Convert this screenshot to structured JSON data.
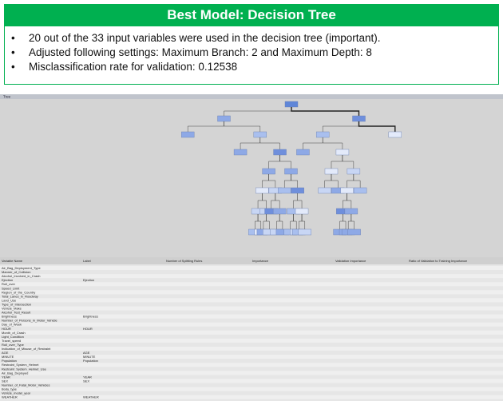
{
  "header": {
    "title": "Best Model: Decision Tree"
  },
  "bullets": [
    "20 out of the 33 input variables were used in the decision tree (important).",
    "Adjusted following settings: Maximum Branch: 2 and Maximum Depth: 8",
    "Misclassification rate for validation: 0.12538"
  ],
  "window": {
    "title": "Tree"
  },
  "table": {
    "columns": [
      "Variable Name",
      "Label",
      "Number of Splitting Rules",
      "Importance",
      "Validation Importance",
      "Ratio of Validation to Training Importance"
    ],
    "rows": [
      {
        "name": "Air_Bag_Deployment_Type"
      },
      {
        "name": "Manner_of_Collision"
      },
      {
        "name": "Alcohol_Involved_in_Crash"
      },
      {
        "name": "Ejection",
        "label": "Ejection"
      },
      {
        "name": "Roll_over"
      },
      {
        "name": "Speed_Limit"
      },
      {
        "name": "Region_of_the_Country"
      },
      {
        "name": "Total_Lanes_in_Roadway"
      },
      {
        "name": "Land_Use"
      },
      {
        "name": "Type_of_Intersection"
      },
      {
        "name": "Vehicle_Make"
      },
      {
        "name": "Alcohol_Test_Result"
      },
      {
        "name": "Brightness",
        "label": "Brightness"
      },
      {
        "name": "Number_of_Persons_in_Motor_Vehicle"
      },
      {
        "name": "Day_of_Week"
      },
      {
        "name": "HOUR",
        "label": "HOUR"
      },
      {
        "name": "Month_of_Crash"
      },
      {
        "name": "Light_Condition"
      },
      {
        "name": "Travel_speed"
      },
      {
        "name": "Roll_over_Type"
      },
      {
        "name": "Indication_of_Misuse_of_Restraint"
      },
      {
        "name": "AGE",
        "label": "AGE"
      },
      {
        "name": "MINUTE",
        "label": "MINUTE"
      },
      {
        "name": "Population",
        "label": "Population"
      },
      {
        "name": "Restraint_System_Helmet"
      },
      {
        "name": "Restraint_System_Helmet_Use"
      },
      {
        "name": "Air_Bag_Deployed"
      },
      {
        "name": "YEAR",
        "label": "YEAR"
      },
      {
        "name": "SEX",
        "label": "SEX"
      },
      {
        "name": "Number_of_Fatal_Motor_Vehicles"
      },
      {
        "name": "Body_type"
      },
      {
        "name": "Vehicle_model_year"
      },
      {
        "name": "WEATHER",
        "label": "WEATHER"
      }
    ]
  }
}
